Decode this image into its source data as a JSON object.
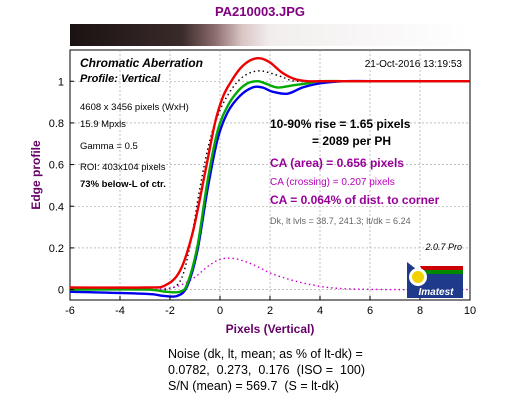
{
  "header": {
    "file_title": "PA210003.JPG"
  },
  "colors": {
    "red": "#ee0000",
    "green": "#00aa00",
    "blue": "#0000ee",
    "magenta": "#cc00cc",
    "purple": "#800080",
    "dark_purple": "#660066",
    "black_dotted": "#000000"
  },
  "panel": {
    "title": "Chromatic Aberration",
    "subtitle": "Profile: Vertical",
    "timestamp": "21-Oct-2016 13:19:53",
    "info": [
      "4608 x 3456 pixels (WxH)",
      "15.9 Mpxls",
      "Gamma = 0.5",
      "ROI: 403x104 pixels"
    ],
    "below_ctr": "73% below-L of ctr.",
    "rise_line1": "10-90% rise = 1.65 pixels",
    "rise_line2": "= 2089 per PH",
    "ca_area": "CA (area) = 0.656 pixels",
    "ca_crossing": "CA (crossing) = 0.207 pixels",
    "ca_corner": "CA = 0.064% of dist. to corner",
    "levels": "Dk, lt lvls = 38.7, 241.3;  lt/dk = 6.24",
    "version": "2.0.7  Pro",
    "logo_text": "Imatest"
  },
  "footer": {
    "line1": "Noise (dk, lt, mean; as % of lt-dk) =",
    "line2": "0.0782,  0.273,  0.176  (ISO =  100)",
    "line3": "S/N (mean) = 569.7  (S = lt-dk)"
  },
  "chart_data": {
    "type": "line",
    "xlabel": "Pixels (Vertical)",
    "ylabel": "Edge profile",
    "xlim": [
      -6,
      10
    ],
    "ylim": [
      -0.05,
      1.15
    ],
    "xticks": [
      -6,
      -4,
      -2,
      0,
      2,
      4,
      6,
      8,
      10
    ],
    "yticks": [
      0,
      0.2,
      0.4,
      0.6,
      0.8,
      1
    ],
    "grid": true,
    "series": [
      {
        "color": "red",
        "style": "solid",
        "x": [
          -6,
          -3,
          -2.2,
          -1.6,
          -1.1,
          -0.6,
          -0.2,
          0.1,
          0.4,
          0.8,
          1.2,
          1.6,
          2.0,
          2.5,
          3.0,
          3.5,
          4,
          5,
          6,
          8,
          10
        ],
        "y": [
          0.01,
          0.01,
          0.02,
          0.09,
          0.27,
          0.56,
          0.8,
          0.92,
          0.99,
          1.06,
          1.1,
          1.11,
          1.09,
          1.04,
          1.01,
          1.0,
          1.0,
          1.0,
          1.0,
          1.0,
          1.0
        ]
      },
      {
        "color": "green",
        "style": "solid",
        "x": [
          -6,
          -3,
          -2.2,
          -1.6,
          -1.3,
          -0.9,
          -0.5,
          -0.1,
          0.3,
          0.7,
          1.1,
          1.5,
          1.8,
          2.3,
          2.9,
          3.5,
          4,
          5,
          6,
          8,
          10
        ],
        "y": [
          0.0,
          0.0,
          -0.01,
          -0.01,
          0.03,
          0.21,
          0.52,
          0.76,
          0.88,
          0.95,
          0.99,
          1.0,
          0.99,
          0.97,
          0.98,
          0.99,
          1.0,
          1.0,
          1.0,
          1.0,
          1.0
        ]
      },
      {
        "color": "blue",
        "style": "solid",
        "x": [
          -6,
          -3,
          -2.3,
          -1.7,
          -1.3,
          -0.9,
          -0.5,
          -0.1,
          0.3,
          0.8,
          1.3,
          1.7,
          2.1,
          2.7,
          3.3,
          4,
          5,
          6,
          8,
          10
        ],
        "y": [
          -0.01,
          -0.02,
          -0.03,
          -0.03,
          0.02,
          0.19,
          0.48,
          0.72,
          0.85,
          0.93,
          0.97,
          0.97,
          0.95,
          0.94,
          0.97,
          0.99,
          1.0,
          1.0,
          1.0,
          1.0
        ]
      },
      {
        "color": "black_dotted",
        "style": "dotted",
        "x": [
          -6,
          -3,
          -2.2,
          -1.6,
          -1.2,
          -0.8,
          -0.4,
          0,
          0.4,
          0.8,
          1.2,
          1.6,
          2.0,
          2.5,
          3.0,
          4,
          5,
          6,
          8,
          10
        ],
        "y": [
          0.0,
          0.0,
          0.0,
          0.04,
          0.21,
          0.49,
          0.72,
          0.86,
          0.95,
          1.01,
          1.04,
          1.05,
          1.04,
          1.02,
          1.0,
          1.0,
          1.0,
          1.0,
          1.0,
          1.0
        ]
      },
      {
        "color": "magenta",
        "style": "dotted",
        "x": [
          -6,
          -3,
          -2.2,
          -1.6,
          -1.0,
          -0.5,
          0,
          0.5,
          1.0,
          1.5,
          2.0,
          2.6,
          3.2,
          3.8,
          4.5,
          5.5,
          7,
          8.5,
          10
        ],
        "y": [
          0.0,
          0.0,
          0.005,
          0.02,
          0.06,
          0.11,
          0.145,
          0.15,
          0.135,
          0.11,
          0.08,
          0.055,
          0.035,
          0.02,
          0.008,
          0.002,
          0.0,
          0.0,
          0.0
        ]
      }
    ]
  }
}
